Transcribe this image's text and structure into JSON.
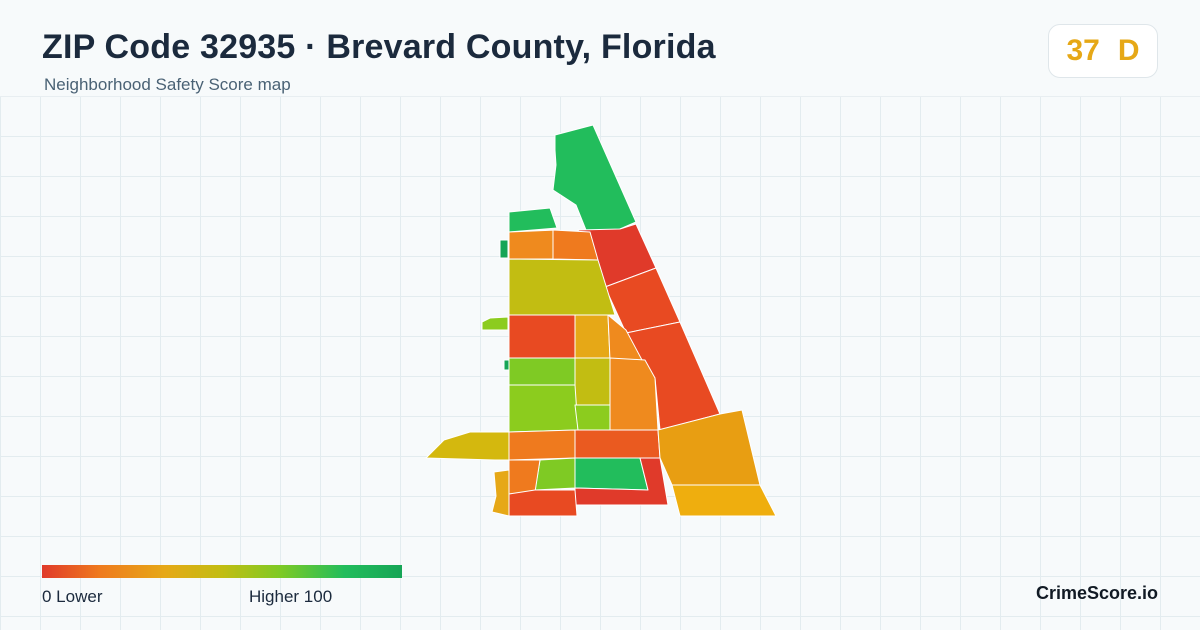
{
  "header": {
    "title": "ZIP Code 32935 · Brevard County, Florida",
    "subtitle": "Neighborhood Safety Score map"
  },
  "score": {
    "value": "37",
    "grade": "D",
    "color": "#e6a817"
  },
  "legend": {
    "low_label": "0  Lower",
    "high_label": "Higher  100",
    "colors": [
      "#e03a2a",
      "#ef7a1e",
      "#e6a817",
      "#c2bd12",
      "#7fca24",
      "#22bd5c",
      "#16a556"
    ]
  },
  "brand": "CrimeScore.io",
  "map": {
    "regions": [
      {
        "name": "north-beach-strip",
        "color": "#22bd5c"
      },
      {
        "name": "beach-band-2",
        "color": "#e03a2a"
      },
      {
        "name": "beach-band-3",
        "color": "#e84a22"
      },
      {
        "name": "beach-band-4",
        "color": "#e84a22"
      },
      {
        "name": "nw-corner",
        "color": "#22bd5c"
      },
      {
        "name": "north-west",
        "color": "#ef8a1e"
      },
      {
        "name": "north-mid",
        "color": "#ef7a1e"
      },
      {
        "name": "big-olive",
        "color": "#c2bd12"
      },
      {
        "name": "west-red",
        "color": "#e84a22"
      },
      {
        "name": "mid-yellow",
        "color": "#e6a817"
      },
      {
        "name": "center-orange",
        "color": "#ef8a1e"
      },
      {
        "name": "west-green-1",
        "color": "#7fca24"
      },
      {
        "name": "center-olive",
        "color": "#c2bd12"
      },
      {
        "name": "east-mid-orange",
        "color": "#ef8a1e"
      },
      {
        "name": "west-green-2",
        "color": "#8ccc1e"
      },
      {
        "name": "south-west-orange",
        "color": "#ef7a1e"
      },
      {
        "name": "south-mid-red",
        "color": "#ea5a20"
      },
      {
        "name": "southeast-amber",
        "color": "#e89e12"
      },
      {
        "name": "southeast-amber-2",
        "color": "#efae0e"
      },
      {
        "name": "south-green",
        "color": "#22bd5c"
      },
      {
        "name": "south-lime",
        "color": "#7fca24"
      },
      {
        "name": "south-west-small",
        "color": "#ef7a1e"
      },
      {
        "name": "south-bottom-red",
        "color": "#e03a2a"
      },
      {
        "name": "south-bottom-orange",
        "color": "#e84a22"
      },
      {
        "name": "west-arm",
        "color": "#d4b80e"
      },
      {
        "name": "islet-1",
        "color": "#16a556"
      },
      {
        "name": "islet-2",
        "color": "#8ccc1e"
      },
      {
        "name": "islet-3",
        "color": "#16a556"
      },
      {
        "name": "islet-4",
        "color": "#e6a817"
      }
    ]
  }
}
